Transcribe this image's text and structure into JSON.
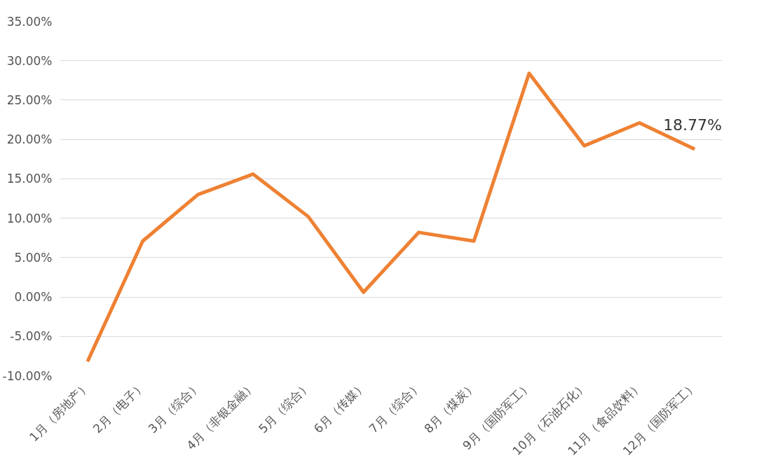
{
  "chart_data": {
    "type": "line",
    "categories": [
      "1月（房地产）",
      "2月（电子）",
      "3月（综合）",
      "4月（非银金融）",
      "5月（综合）",
      "6月（传媒）",
      "7月（综合）",
      "8月（煤炭）",
      "9月（国防军工）",
      "10月（石油石化）",
      "11月（食品饮料）",
      "12月（国防军工）"
    ],
    "series": [
      {
        "color": "#ee8133",
        "values": [
          -8.2,
          7.1,
          13.0,
          15.6,
          10.2,
          0.6,
          8.2,
          7.1,
          28.4,
          19.2,
          22.1,
          18.77
        ],
        "value_labels": [
          null,
          null,
          null,
          null,
          null,
          null,
          null,
          null,
          null,
          null,
          null,
          "18.77%"
        ]
      }
    ],
    "ylim": [
      -10,
      35
    ],
    "yticks": [
      {
        "value": -10,
        "label": "-10.00%"
      },
      {
        "value": -5,
        "label": "-5.00%"
      },
      {
        "value": 0,
        "label": "0.00%"
      },
      {
        "value": 5,
        "label": "5.00%"
      },
      {
        "value": 10,
        "label": "10.00%"
      },
      {
        "value": 15,
        "label": "15.00%"
      },
      {
        "value": 20,
        "label": "20.00%"
      },
      {
        "value": 25,
        "label": "25.00%"
      },
      {
        "value": 30,
        "label": "30.00%"
      },
      {
        "value": 35,
        "label": "35.00%"
      }
    ],
    "grid": "y",
    "marker": "none",
    "line_style": "solid"
  }
}
